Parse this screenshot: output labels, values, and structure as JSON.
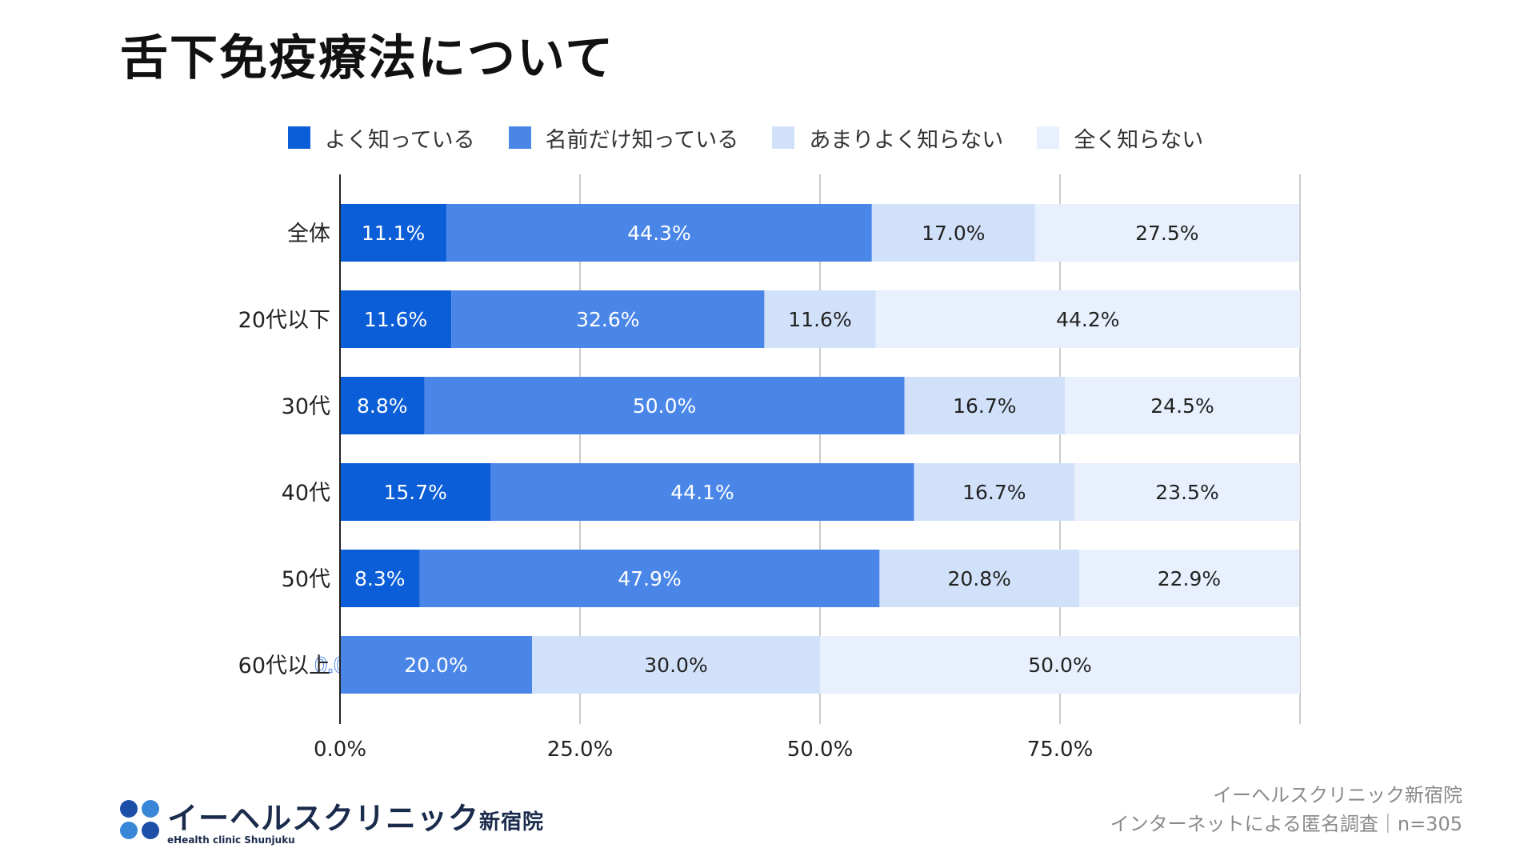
{
  "page": {
    "title": "舌下免疫療法について"
  },
  "chart_data": {
    "type": "bar",
    "orientation": "horizontal",
    "stacked": true,
    "categories": [
      "全体",
      "20代以下",
      "30代",
      "40代",
      "50代",
      "60代以上"
    ],
    "series": [
      {
        "name": "よく知っている",
        "color": "#0b5ed7",
        "values": [
          11.1,
          11.6,
          8.8,
          15.7,
          8.3,
          0.0
        ],
        "labels": [
          "11.1%",
          "11.6%",
          "8.8%",
          "15.7%",
          "8.3%",
          "0.0%"
        ]
      },
      {
        "name": "名前だけ知っている",
        "color": "#4a86e8",
        "values": [
          44.3,
          32.6,
          50.0,
          44.1,
          47.9,
          20.0
        ],
        "labels": [
          "44.3%",
          "32.6%",
          "50.0%",
          "44.1%",
          "47.9%",
          "20.0%"
        ]
      },
      {
        "name": "あまりよく知らない",
        "color": "#d2e1fa",
        "values": [
          17.0,
          11.6,
          16.7,
          16.7,
          20.8,
          30.0
        ],
        "labels": [
          "17.0%",
          "11.6%",
          "16.7%",
          "16.7%",
          "20.8%",
          "30.0%"
        ]
      },
      {
        "name": "全く知らない",
        "color": "#e8f0fd",
        "values": [
          27.5,
          44.2,
          24.5,
          23.5,
          22.9,
          50.0
        ],
        "labels": [
          "27.5%",
          "44.2%",
          "24.5%",
          "23.5%",
          "22.9%",
          "50.0%"
        ]
      }
    ],
    "xlim": [
      0,
      100
    ],
    "x_ticks": [
      0,
      25,
      50,
      75,
      100
    ],
    "x_tick_labels": [
      "0.0%",
      "25.0%",
      "50.0%",
      "75.0%",
      ""
    ],
    "grid": true,
    "legend_position": "top"
  },
  "footer": {
    "source_line1": "イーヘルスクリニック新宿院",
    "source_line2": "インターネットによる匿名調査｜n=305"
  },
  "logo": {
    "name": "イーヘルスクリニック",
    "suffix": "新宿院",
    "sub": "eHealth clinic Shunjuku",
    "dot_colors": [
      "#1e4fa8",
      "#3a86d6",
      "#3a86d6",
      "#1e4fa8"
    ]
  }
}
